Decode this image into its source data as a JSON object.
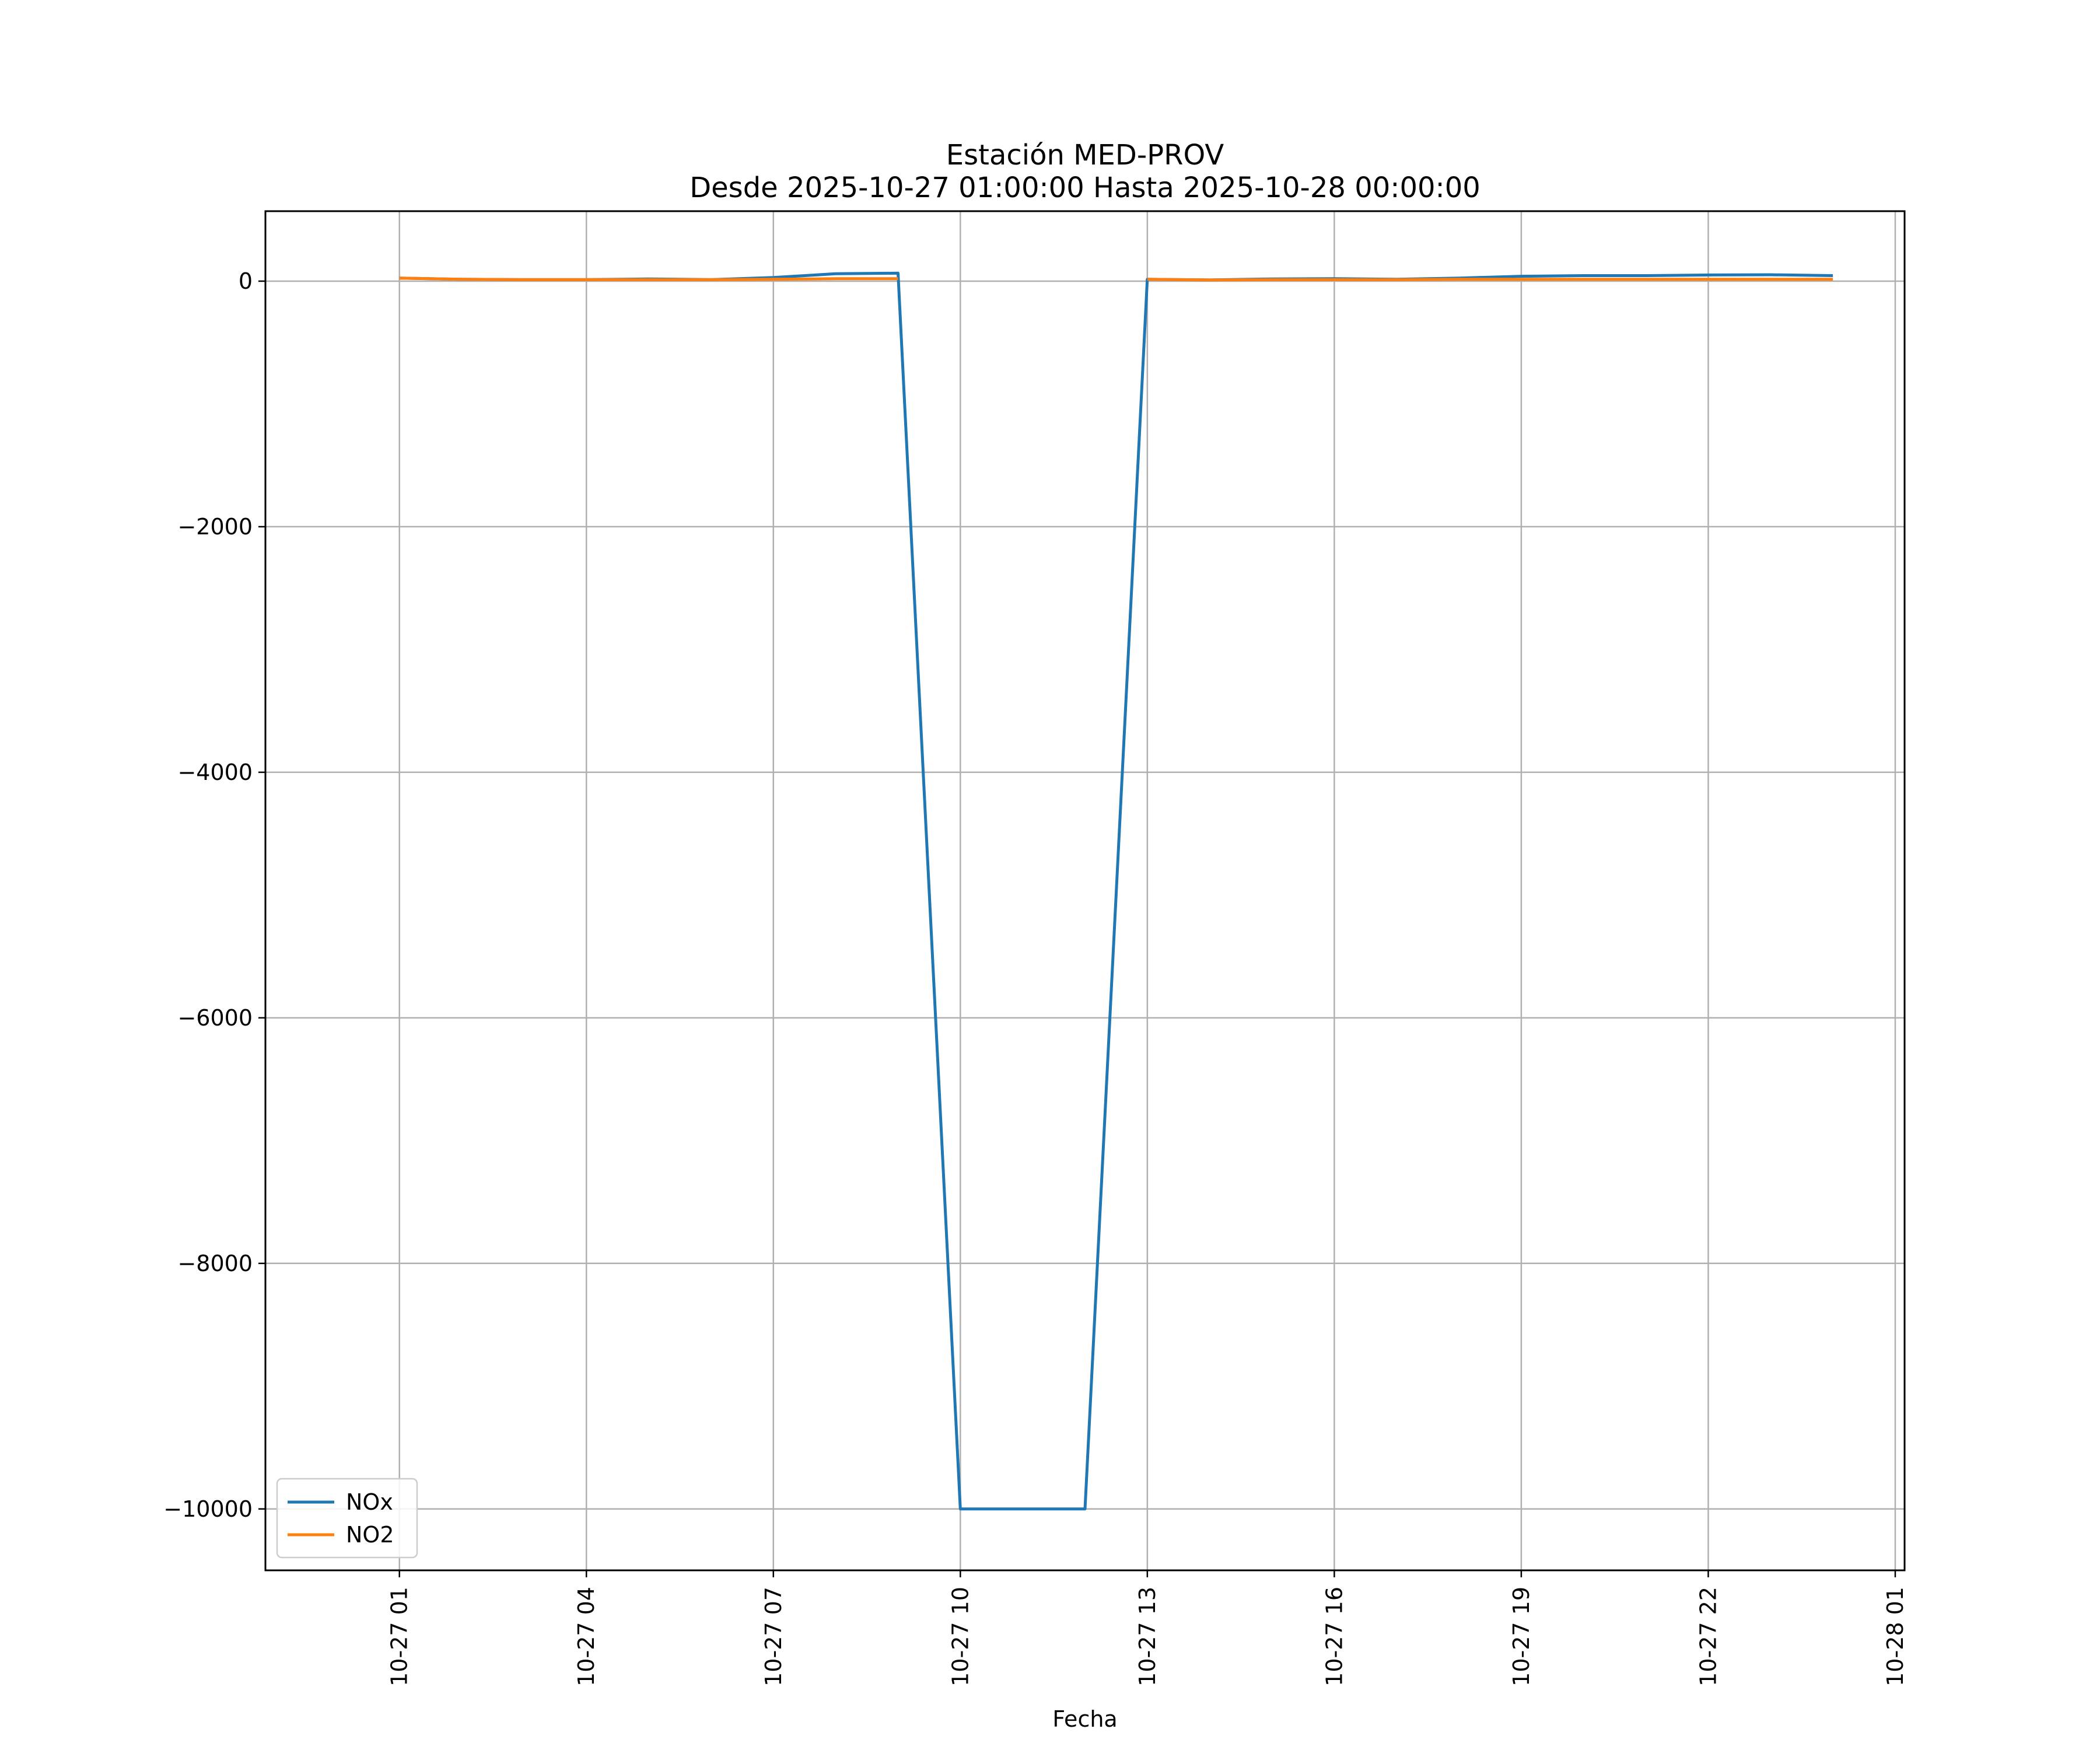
{
  "chart_data": {
    "type": "line",
    "title": "Estación MED-PROV",
    "subtitle": "Desde 2025-10-27 01:00:00 Hasta 2025-10-28 00:00:00",
    "xlabel": "Fecha",
    "ylabel": "",
    "x": [
      "2025-10-27 01:00",
      "2025-10-27 02:00",
      "2025-10-27 03:00",
      "2025-10-27 04:00",
      "2025-10-27 05:00",
      "2025-10-27 06:00",
      "2025-10-27 07:00",
      "2025-10-27 08:00",
      "2025-10-27 09:00",
      "2025-10-27 10:00",
      "2025-10-27 11:00",
      "2025-10-27 12:00",
      "2025-10-27 13:00",
      "2025-10-27 14:00",
      "2025-10-27 15:00",
      "2025-10-27 16:00",
      "2025-10-27 17:00",
      "2025-10-27 18:00",
      "2025-10-27 19:00",
      "2025-10-27 20:00",
      "2025-10-27 21:00",
      "2025-10-27 22:00",
      "2025-10-27 23:00",
      "2025-10-28 00:00"
    ],
    "series": [
      {
        "name": "NOx",
        "color": "#1f77b4",
        "values": [
          25,
          15,
          12,
          12,
          18,
          12,
          30,
          60,
          65,
          -10000,
          -10000,
          -10000,
          15,
          10,
          18,
          20,
          15,
          25,
          40,
          45,
          45,
          50,
          52,
          45
        ]
      },
      {
        "name": "NO2",
        "color": "#ff7f0e",
        "values": [
          25,
          15,
          12,
          12,
          12,
          12,
          15,
          20,
          20,
          null,
          null,
          null,
          15,
          10,
          12,
          12,
          12,
          15,
          15,
          15,
          15,
          15,
          15,
          15
        ]
      }
    ],
    "xlim": [
      "2025-10-26 22:51",
      "2025-10-28 01:09"
    ],
    "ylim": [
      -10500,
      570
    ],
    "x_ticks": [
      "10-27 01",
      "10-27 04",
      "10-27 07",
      "10-27 10",
      "10-27 13",
      "10-27 16",
      "10-27 19",
      "10-27 22",
      "10-28 01"
    ],
    "y_ticks": [
      0,
      -2000,
      -4000,
      -6000,
      -8000,
      -10000
    ],
    "y_tick_labels": [
      "0",
      "−2000",
      "−4000",
      "−6000",
      "−8000",
      "−10000"
    ],
    "grid": true,
    "legend_position": "lower-left"
  }
}
